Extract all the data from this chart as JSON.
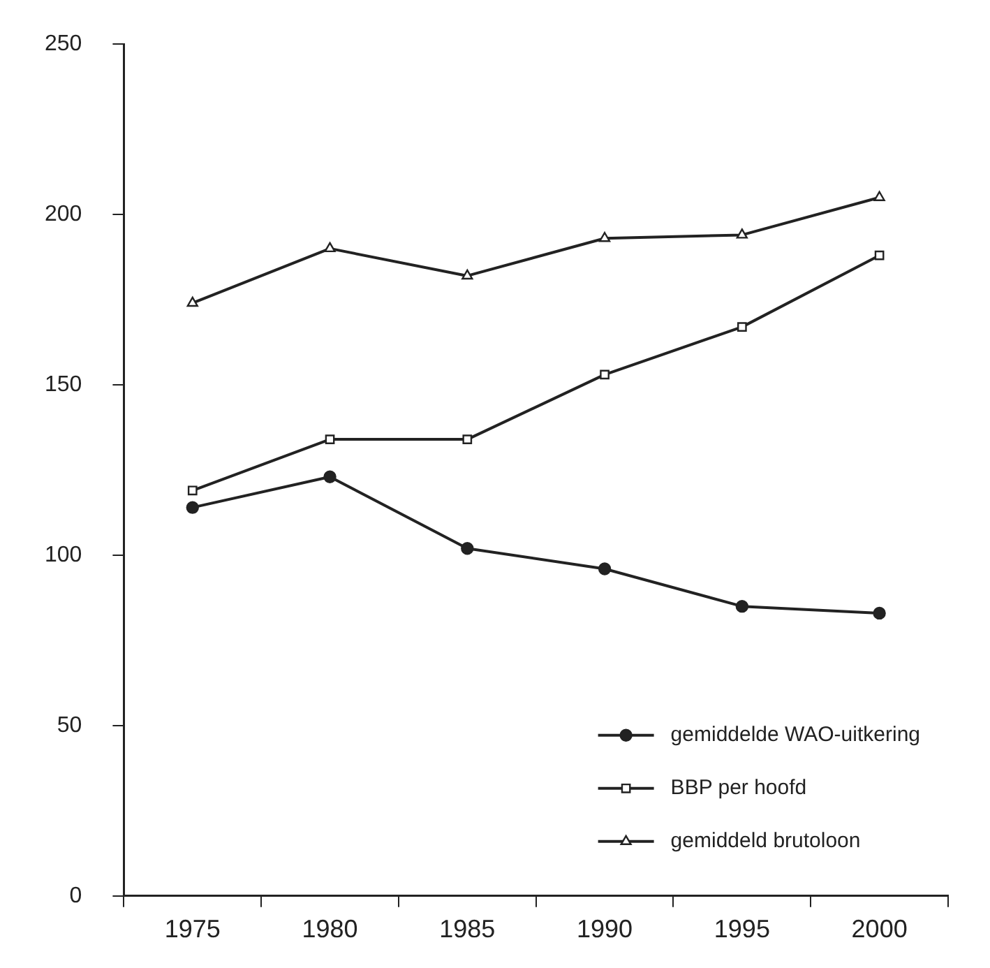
{
  "chart_data": {
    "type": "line",
    "categories": [
      "1975",
      "1980",
      "1985",
      "1990",
      "1995",
      "2000"
    ],
    "series": [
      {
        "name": "gemiddelde WAO-uitkering",
        "color": "#222222",
        "marker": "circle",
        "values": [
          114,
          123,
          102,
          96,
          85,
          83
        ]
      },
      {
        "name": "BBP per hoofd",
        "color": "#222222",
        "marker": "square",
        "values": [
          119,
          134,
          134,
          153,
          167,
          188
        ]
      },
      {
        "name": "gemiddeld brutoloon",
        "color": "#222222",
        "marker": "triangle",
        "values": [
          174,
          190,
          182,
          193,
          194,
          205
        ]
      }
    ],
    "ylim": [
      0,
      250
    ],
    "yticks": [
      0,
      50,
      100,
      150,
      200,
      250
    ],
    "grid": false,
    "legend": "bottom right",
    "line_style": "solid"
  }
}
